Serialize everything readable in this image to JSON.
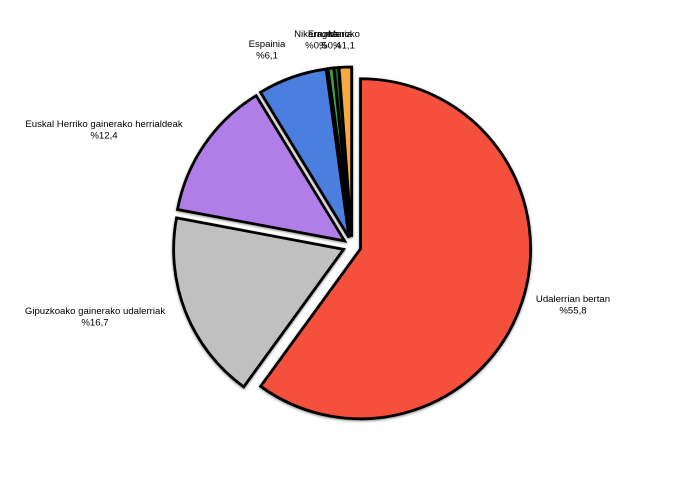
{
  "page": {
    "background": "#ffffff"
  },
  "chart_data": {
    "type": "pie",
    "title": "",
    "legend_position": "none",
    "label_style": "outside, two lines: category name above, percentage below",
    "percent_prefix_format": "%NN,N (Basque decimal comma)",
    "start_angle_deg": 90,
    "direction": "clockwise",
    "values_sum_displayed": 93.0,
    "normalized": true,
    "outline_color": "#000000",
    "background_color": "#ffffff",
    "categories": [
      "Udalerrian bertan",
      "Gipuzkoako gainerako udalerriak",
      "Euskal Herriko gainerako herrialdeak",
      "Espainia",
      "Nikaragua",
      "Errumania",
      "Maroko"
    ],
    "values": [
      55.8,
      16.7,
      12.4,
      6.1,
      0.5,
      0.4,
      1.1
    ],
    "slices": [
      {
        "label": "Udalerrian bertan",
        "value": 55.8,
        "value_label": "%55,8",
        "color": "#f4503c"
      },
      {
        "label": "Gipuzkoako gainerako udalerriak",
        "value": 16.7,
        "value_label": "%16,7",
        "color": "#c0c0c0"
      },
      {
        "label": "Euskal Herriko gainerako herrialdeak",
        "value": 12.4,
        "value_label": "%12,4",
        "color": "#b07ee6"
      },
      {
        "label": "Espainia",
        "value": 6.1,
        "value_label": "%6,1",
        "color": "#4a7fe0"
      },
      {
        "label": "Nikaragua",
        "value": 0.5,
        "value_label": "%0,5",
        "color": "#44a048"
      },
      {
        "label": "Errumania",
        "value": 0.4,
        "value_label": "%0,4",
        "color": "#1c701c"
      },
      {
        "label": "Maroko",
        "value": 1.1,
        "value_label": "%1,1",
        "color": "#f7a843"
      }
    ]
  }
}
